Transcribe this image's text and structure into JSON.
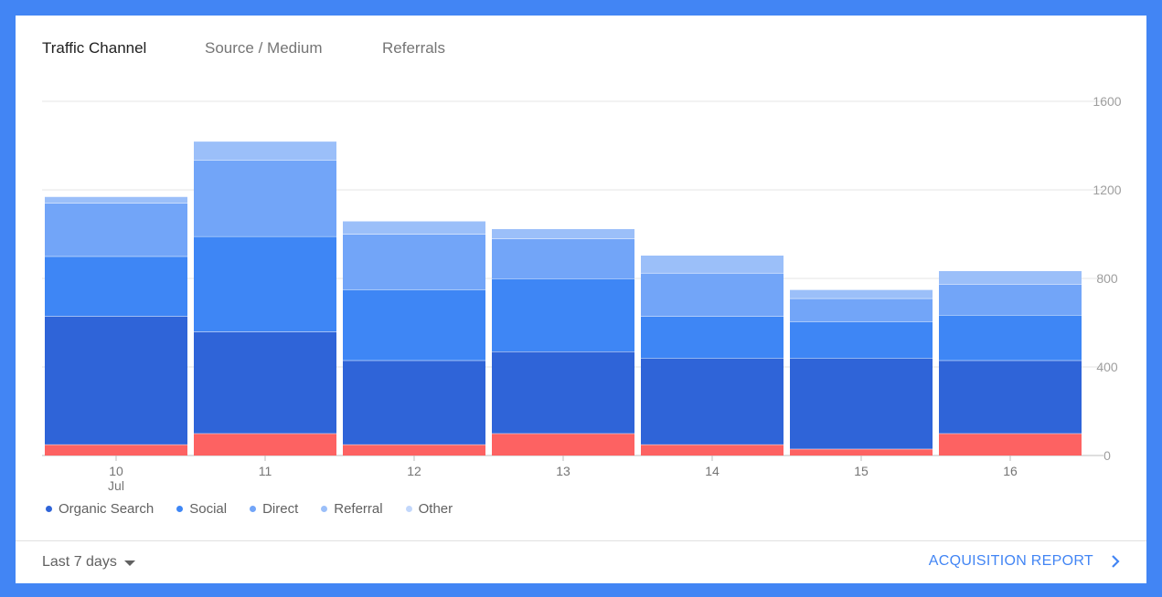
{
  "tabs": [
    {
      "label": "Traffic Channel",
      "active": true
    },
    {
      "label": "Source / Medium",
      "active": false
    },
    {
      "label": "Referrals",
      "active": false
    }
  ],
  "footer": {
    "range_label": "Last 7 days",
    "report_link": "ACQUISITION REPORT"
  },
  "icons": {
    "dropdown": "caret-down-icon",
    "link": "chevron-right-icon"
  },
  "chart_data": {
    "type": "bar",
    "stacked": true,
    "categories": [
      "10",
      "11",
      "12",
      "13",
      "14",
      "15",
      "16"
    ],
    "category_sublabels": [
      "Jul",
      "",
      "",
      "",
      "",
      "",
      ""
    ],
    "ylim": [
      0,
      1600
    ],
    "yticks": [
      0,
      400,
      800,
      1200,
      1600
    ],
    "grid": true,
    "legend_position": "bottom-left",
    "series": [
      {
        "name": "",
        "color": "#fd6262",
        "legend": false,
        "values": [
          50,
          100,
          50,
          100,
          50,
          30,
          100
        ]
      },
      {
        "name": "Organic Search",
        "color": "#2f64d8",
        "legend": true,
        "values": [
          580,
          460,
          380,
          370,
          390,
          410,
          330
        ]
      },
      {
        "name": "Social",
        "color": "#3e86f5",
        "legend": true,
        "values": [
          270,
          430,
          320,
          330,
          190,
          165,
          205
        ]
      },
      {
        "name": "Direct",
        "color": "#72a5f8",
        "legend": true,
        "values": [
          240,
          345,
          250,
          180,
          195,
          105,
          140
        ]
      },
      {
        "name": "Referral",
        "color": "#9bbff9",
        "legend": true,
        "values": [
          30,
          85,
          60,
          45,
          80,
          40,
          60
        ]
      },
      {
        "name": "Other",
        "color": "#c2d7fb",
        "legend": true,
        "values": [
          0,
          0,
          0,
          0,
          0,
          0,
          0
        ]
      }
    ]
  }
}
